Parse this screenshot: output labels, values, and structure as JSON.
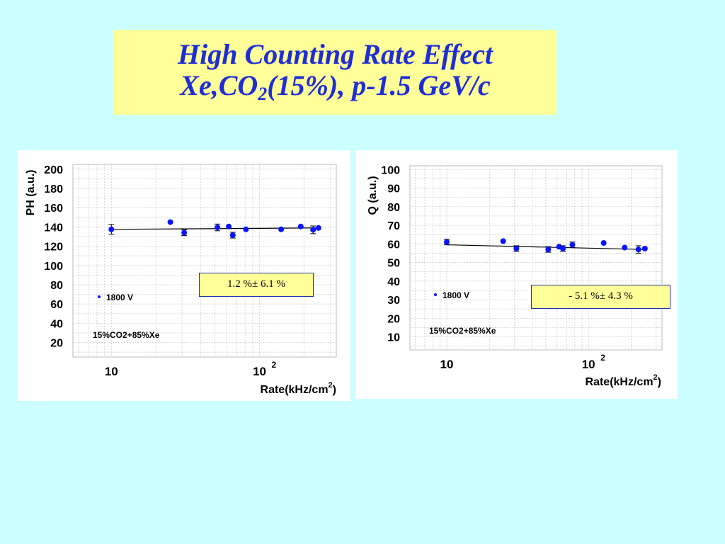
{
  "title": {
    "line1": "High Counting Rate Effect",
    "line2_pre": "Xe,CO",
    "line2_sub": "2",
    "line2_post": "(15%), p-1.5 GeV/c"
  },
  "chart_data": [
    {
      "type": "scatter",
      "xscale": "log",
      "xlim": [
        5.5,
        330
      ],
      "ylim": [
        5,
        205
      ],
      "xticks": [
        {
          "value": 10,
          "label": "10"
        },
        {
          "value": 100,
          "label": "10",
          "sup": "2"
        }
      ],
      "yticks": [
        20,
        40,
        60,
        80,
        100,
        120,
        140,
        160,
        180,
        200
      ],
      "ylabel": "PH (a.u.)",
      "xlabel": "Rate(kHz/cm",
      "xlabel_sup": "2",
      "xlabel_end": ")",
      "legend": "1800 V",
      "note": "15%CO2+85%Xe",
      "fit_label": "1.2 %± 6.1 %",
      "fit_line": {
        "x": [
          10,
          240
        ],
        "y": [
          137.5,
          139.0
        ]
      },
      "color": "#0a14ff",
      "series": [
        {
          "x": [
            10,
            25,
            31,
            52,
            62,
            66,
            81,
            140,
            190,
            230,
            250
          ],
          "y": [
            137.5,
            145,
            134,
            139.5,
            140.5,
            131.5,
            137.5,
            137.5,
            140.5,
            137,
            139
          ],
          "err": [
            5,
            0,
            3,
            3.5,
            0,
            3,
            0,
            0,
            0,
            4,
            0
          ]
        }
      ]
    },
    {
      "type": "scatter",
      "xscale": "log",
      "xlim": [
        5.5,
        330
      ],
      "ylim": [
        3,
        102
      ],
      "xticks": [
        {
          "value": 10,
          "label": "10"
        },
        {
          "value": 100,
          "label": "10",
          "sup": "2"
        }
      ],
      "yticks": [
        10,
        20,
        30,
        40,
        50,
        60,
        70,
        80,
        90,
        100
      ],
      "ylabel": "Q (a.u.)",
      "xlabel": "Rate(kHz/cm",
      "xlabel_sup": "2",
      "xlabel_end": ")",
      "legend": "1800 V",
      "note": "15%CO2+85%Xe",
      "fit_label": "- 5.1 %± 4.3 %",
      "fit_line": {
        "x": [
          10,
          250
        ],
        "y": [
          59.5,
          57.0
        ]
      },
      "color": "#0a14ff",
      "series": [
        {
          "x": [
            10,
            25,
            31,
            52,
            62,
            66,
            77,
            128,
            180,
            225,
            250
          ],
          "y": [
            61,
            61.5,
            57.5,
            57,
            58.5,
            57.5,
            59.5,
            60.5,
            58,
            57,
            57.5
          ],
          "err": [
            1.5,
            0,
            1.5,
            1.5,
            0,
            1.5,
            1.5,
            0,
            0,
            2,
            0
          ]
        }
      ]
    }
  ]
}
